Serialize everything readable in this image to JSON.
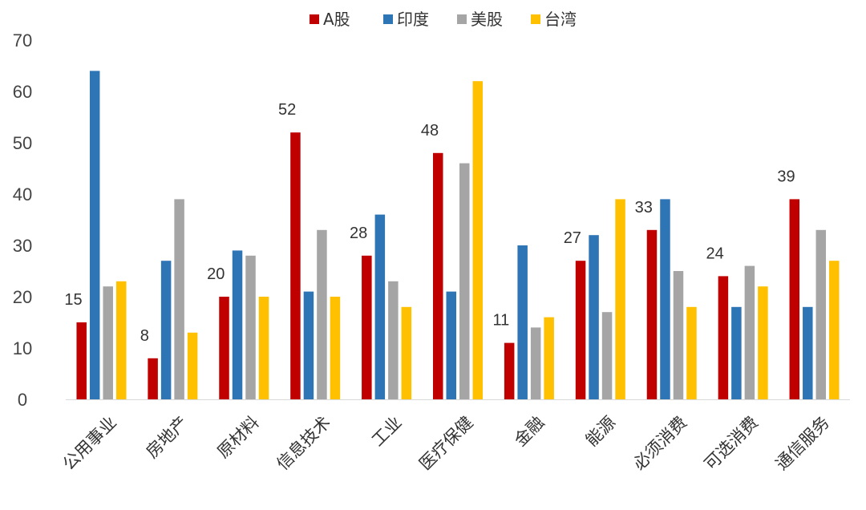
{
  "chart_data": {
    "type": "bar",
    "title": "",
    "xlabel": "",
    "ylabel": "",
    "ylim": [
      0,
      70
    ],
    "yticks": [
      0,
      10,
      20,
      30,
      40,
      50,
      60,
      70
    ],
    "grid": false,
    "legend_position": "top",
    "categories": [
      "公用事业",
      "房地产",
      "原材料",
      "信息技术",
      "工业",
      "医疗保健",
      "金融",
      "能源",
      "必须消费",
      "可选消费",
      "通信服务"
    ],
    "series": [
      {
        "name": "A股",
        "color": "#C00000",
        "values": [
          15,
          8,
          20,
          52,
          28,
          48,
          11,
          27,
          33,
          24,
          39
        ],
        "data_labels": [
          "15",
          "8",
          "20",
          "52",
          "28",
          "48",
          "11",
          "27",
          "33",
          "24",
          "39"
        ]
      },
      {
        "name": "印度",
        "color": "#2E75B6",
        "values": [
          64,
          27,
          29,
          21,
          36,
          21,
          30,
          32,
          39,
          18,
          18
        ]
      },
      {
        "name": "美股",
        "color": "#A5A5A5",
        "values": [
          22,
          39,
          28,
          33,
          23,
          46,
          14,
          17,
          25,
          26,
          33
        ]
      },
      {
        "name": "台湾",
        "color": "#FFC000",
        "values": [
          23,
          13,
          20,
          20,
          18,
          62,
          16,
          39,
          18,
          22,
          27
        ]
      }
    ]
  }
}
